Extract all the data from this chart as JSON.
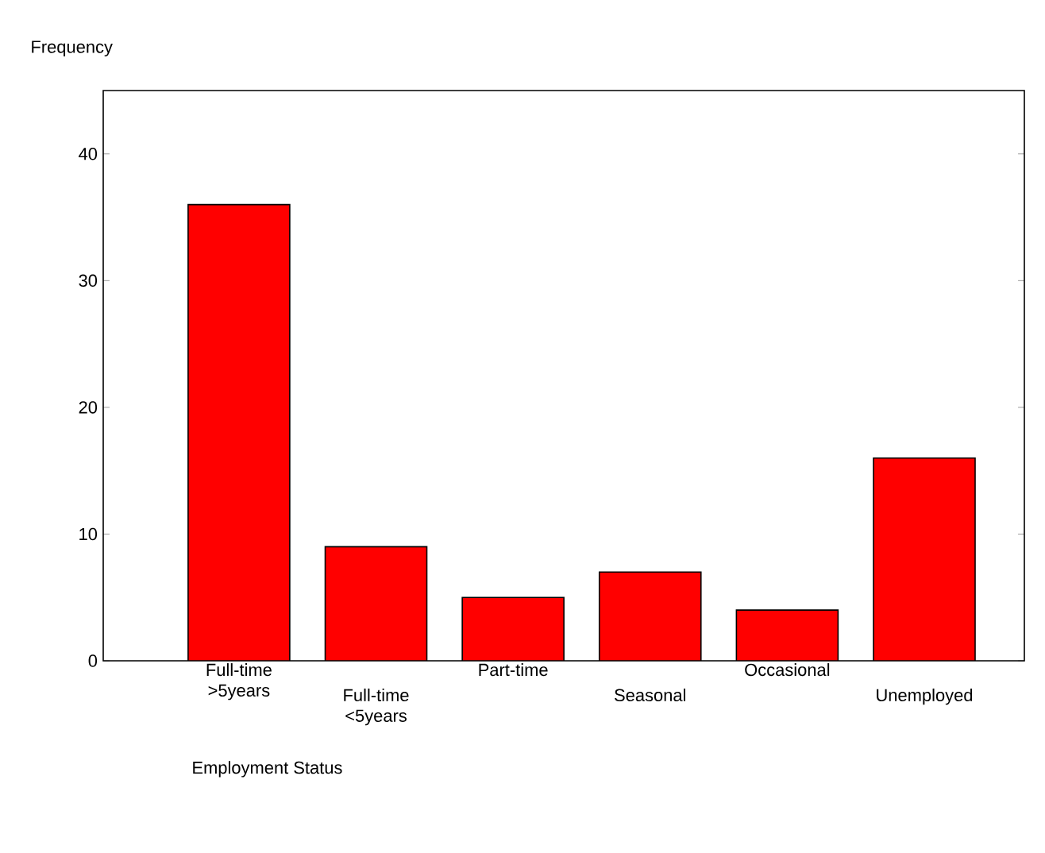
{
  "chart_data": {
    "type": "bar",
    "xlabel": "Employment Status",
    "ylabel": "Frequency",
    "categories": [
      "Full-time >5years",
      "Full-time <5years",
      "Part-time",
      "Seasonal",
      "Occasional",
      "Unemployed"
    ],
    "values": [
      36,
      9,
      5,
      7,
      4,
      16
    ],
    "color": "#ff0000",
    "ylim": [
      0,
      45
    ],
    "yticks": [
      0,
      10,
      20,
      30,
      40
    ],
    "grid": false
  }
}
